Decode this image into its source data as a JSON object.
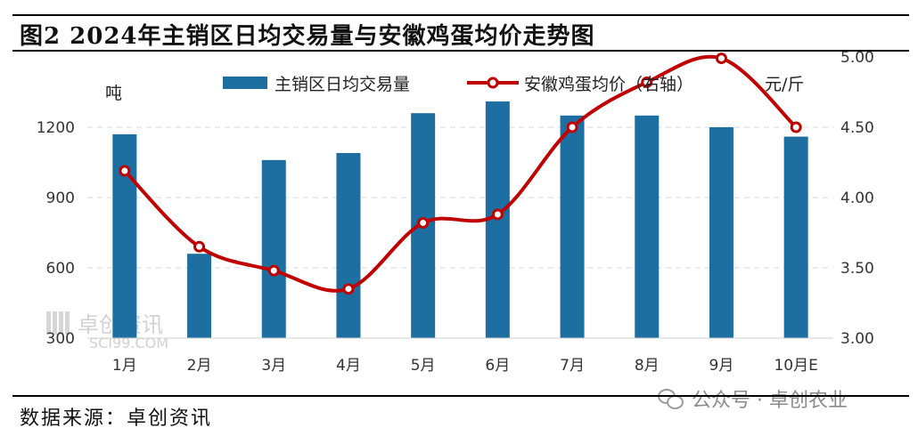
{
  "title": "图2 2024年主销区日均交易量与安徽鸡蛋均价走势图",
  "source": "数据来源：卓创资讯",
  "watermark": {
    "name": "卓创资讯",
    "site": "SCI99.COM"
  },
  "wechat_tag": "公众号 · 卓创农业",
  "colors": {
    "bar": "#1e6fa1",
    "line": "#c00000",
    "marker_fill": "#ffffff"
  },
  "chart_data": {
    "type": "bar",
    "title": "图2 2024年主销区日均交易量与安徽鸡蛋均价走势图",
    "categories": [
      "1月",
      "2月",
      "3月",
      "4月",
      "5月",
      "6月",
      "7月",
      "8月",
      "9月",
      "10月E"
    ],
    "series": [
      {
        "name": "主销区日均交易量",
        "type": "bar",
        "axis": "left",
        "values": [
          1170,
          660,
          1060,
          1090,
          1260,
          1310,
          1250,
          1250,
          1200,
          1160
        ]
      },
      {
        "name": "安徽鸡蛋均价（右轴）",
        "type": "line",
        "axis": "right",
        "smooth": true,
        "marker": "circle",
        "values": [
          4.19,
          3.65,
          3.48,
          3.35,
          3.82,
          3.88,
          4.5,
          4.82,
          4.99,
          4.5
        ]
      }
    ],
    "left_axis": {
      "unit": "吨",
      "ylim": [
        300,
        1500
      ],
      "ticks": [
        300,
        600,
        900,
        1200
      ]
    },
    "right_axis": {
      "unit": "元/斤",
      "ylim": [
        3.0,
        5.0
      ],
      "ticks": [
        "3.00",
        "3.50",
        "4.00",
        "4.50",
        "5.00"
      ]
    },
    "grid": "horizontal-dashed",
    "legend_position": "top"
  }
}
